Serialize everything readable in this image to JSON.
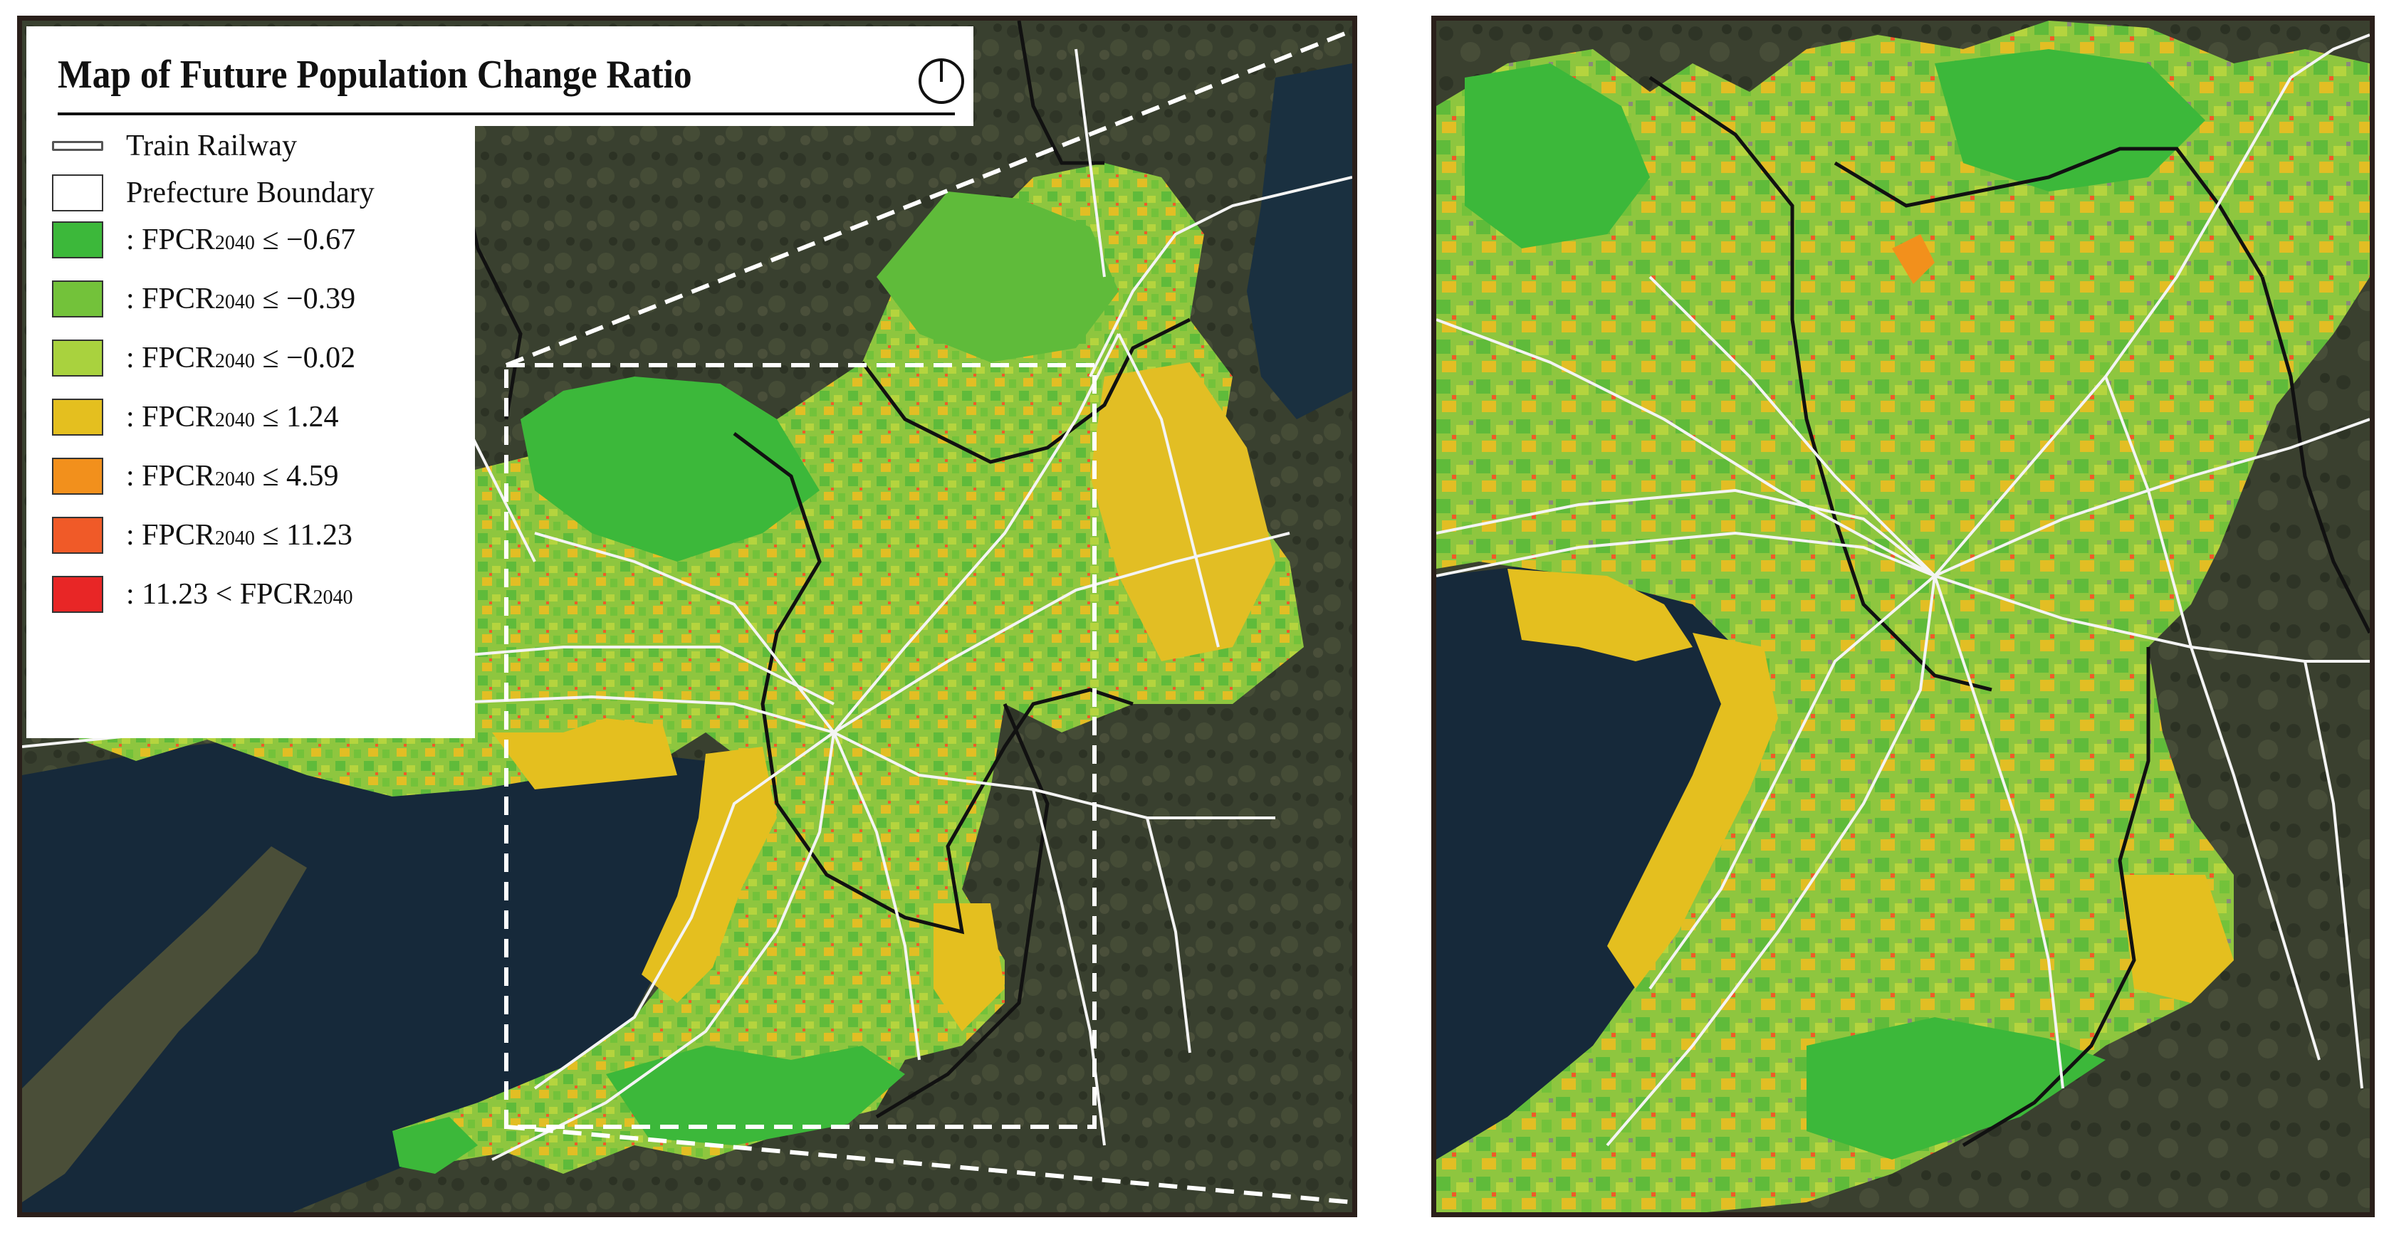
{
  "legend": {
    "title": "Map of Future Population Change Ratio",
    "items": [
      {
        "type": "line",
        "label": "Train Railway"
      },
      {
        "type": "box",
        "label": "Prefecture Boundary"
      },
      {
        "type": "class",
        "color": "#3cb83a",
        "prefix": ": FPCR",
        "sub": "2040",
        "suffix": " ≤ −0.67"
      },
      {
        "type": "class",
        "color": "#73c23a",
        "prefix": ": FPCR",
        "sub": "2040",
        "suffix": " ≤ −0.39"
      },
      {
        "type": "class",
        "color": "#a9d23e",
        "prefix": ": FPCR",
        "sub": "2040",
        "suffix": " ≤ −0.02"
      },
      {
        "type": "class",
        "color": "#e4bf1f",
        "prefix": ": FPCR",
        "sub": "2040",
        "suffix": " ≤ 1.24"
      },
      {
        "type": "class",
        "color": "#f2901c",
        "prefix": ": FPCR",
        "sub": "2040",
        "suffix": " ≤ 4.59"
      },
      {
        "type": "class",
        "color": "#f05a28",
        "prefix": ": FPCR",
        "sub": "2040",
        "suffix": " ≤ 11.23"
      },
      {
        "type": "class",
        "color": "#e82626",
        "prefix": ": 11.23 < FPCR",
        "sub": "2040",
        "suffix": ""
      }
    ]
  },
  "colors": {
    "sea": "#16293a",
    "land": "#3a4030",
    "railway": "#f4f4f4",
    "boundary": "#111111",
    "frame": "#2a1f1a"
  },
  "icons": {
    "north_arrow": "compass-icon"
  }
}
